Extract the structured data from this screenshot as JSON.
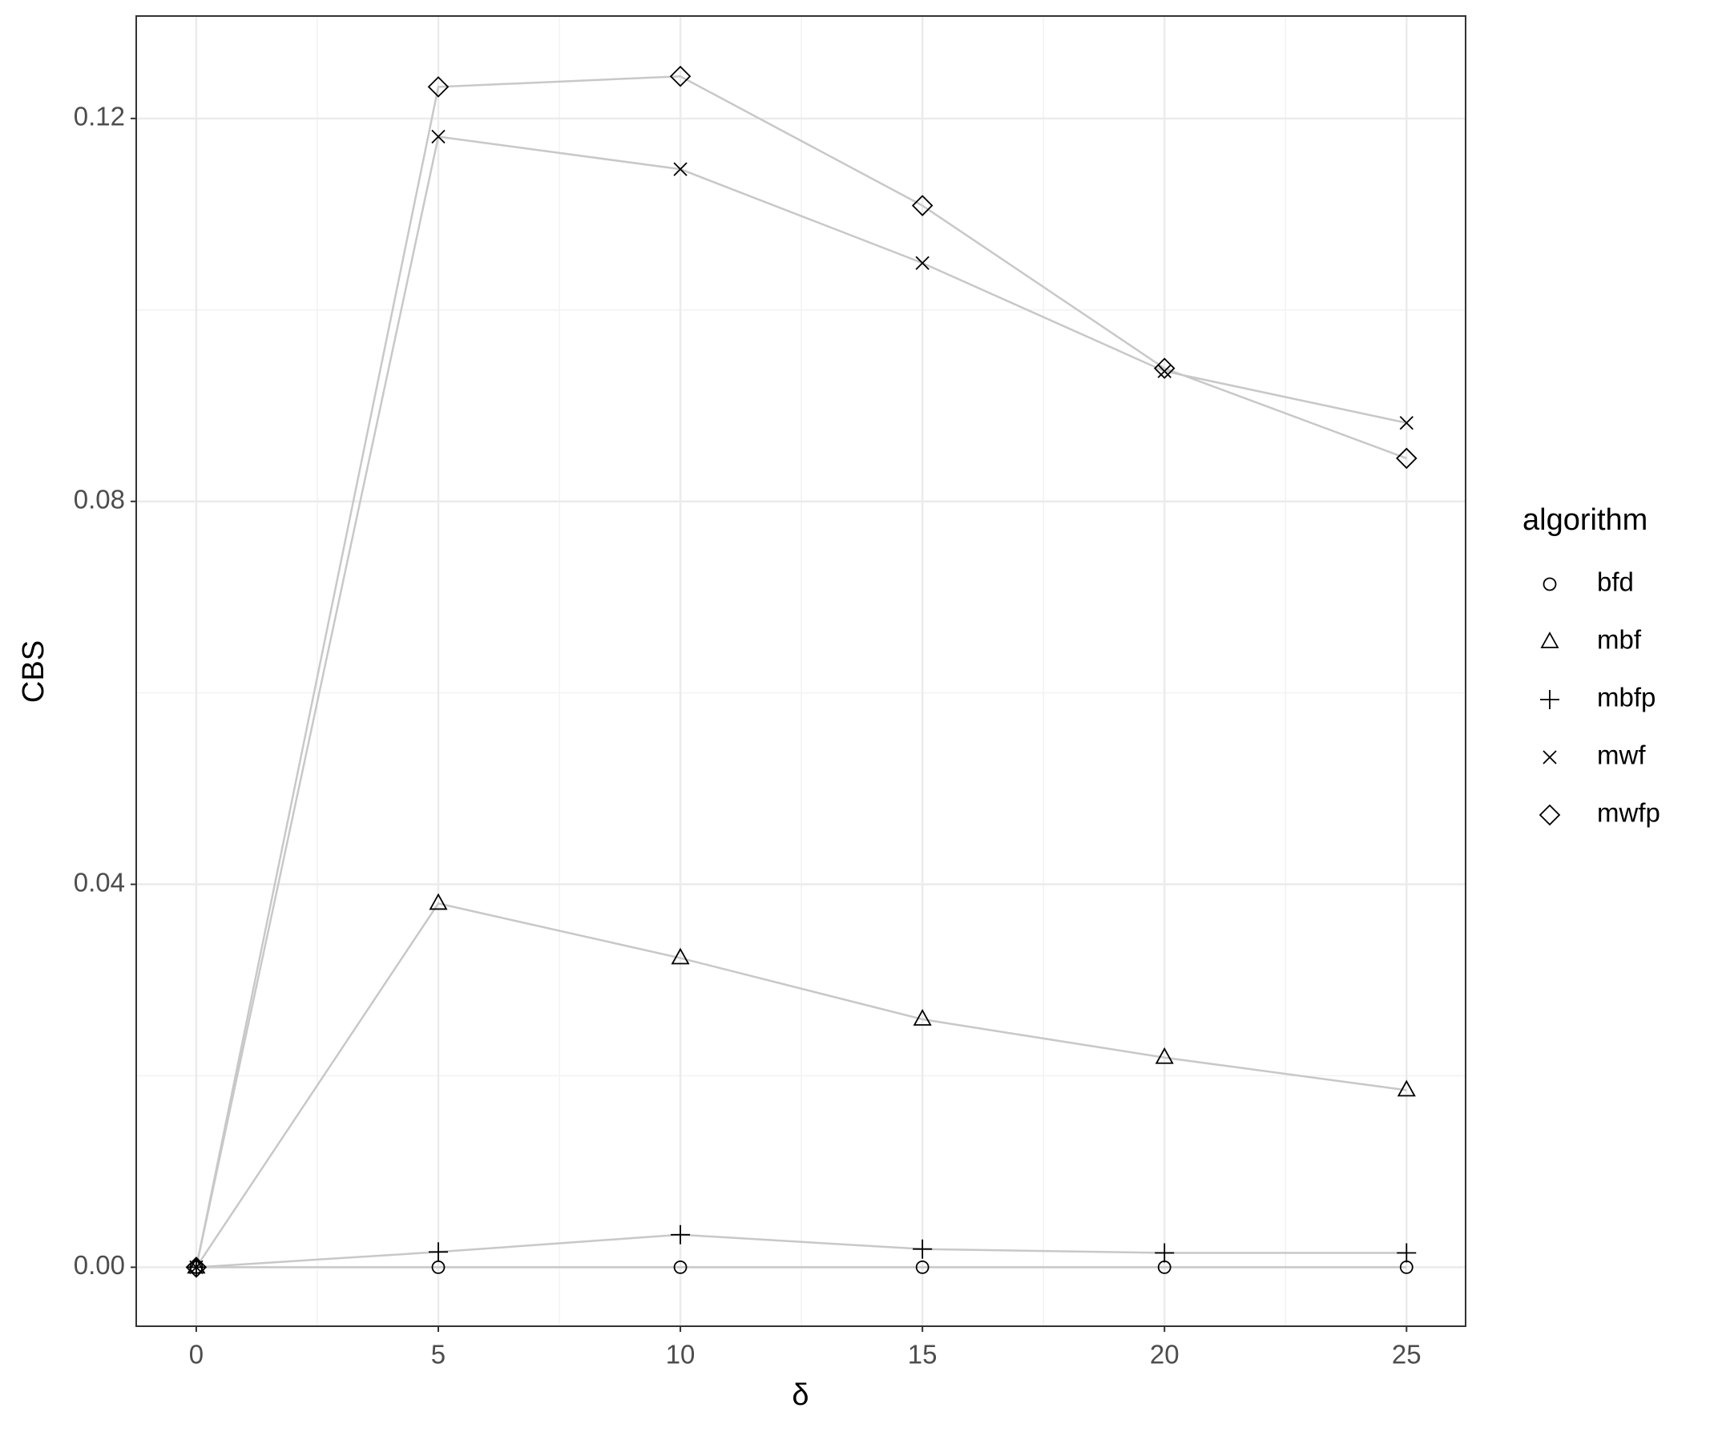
{
  "chart_data": {
    "type": "line",
    "x_label": "δ",
    "y_label": "CBS",
    "x": [
      0,
      5,
      10,
      15,
      20,
      25
    ],
    "series": [
      {
        "name": "bfd",
        "shape": "circle",
        "values": [
          0,
          0,
          0,
          0,
          0,
          0
        ]
      },
      {
        "name": "mbf",
        "shape": "triangle",
        "values": [
          0,
          0.038,
          0.0323,
          0.0259,
          0.0219,
          0.0185
        ]
      },
      {
        "name": "mbfp",
        "shape": "plus",
        "values": [
          0,
          0.0016,
          0.0034,
          0.0019,
          0.0015,
          0.0015
        ]
      },
      {
        "name": "mwf",
        "shape": "cross",
        "values": [
          0,
          0.1181,
          0.1147,
          0.1049,
          0.0936,
          0.0882
        ]
      },
      {
        "name": "mwfp",
        "shape": "diamond",
        "values": [
          0,
          0.1233,
          0.1244,
          0.1109,
          0.0939,
          0.0845
        ]
      }
    ],
    "line_color": "#c8c8c8",
    "point_color": "#000000",
    "legend_title": "algorithm",
    "legend": "right",
    "xlim": [
      -1.24,
      26.22
    ],
    "ylim": [
      -0.00616,
      0.1307
    ],
    "xticks": [
      0,
      5,
      10,
      15,
      20,
      25
    ],
    "yticks": [
      {
        "value": 0,
        "label": "0.00"
      },
      0.04,
      0.08,
      0.12
    ],
    "minor_xticks": [
      2.5,
      7.5,
      12.5,
      17.5,
      22.5
    ],
    "minor_yticks": [
      0.02,
      0.06,
      0.1
    ],
    "grid": true
  }
}
